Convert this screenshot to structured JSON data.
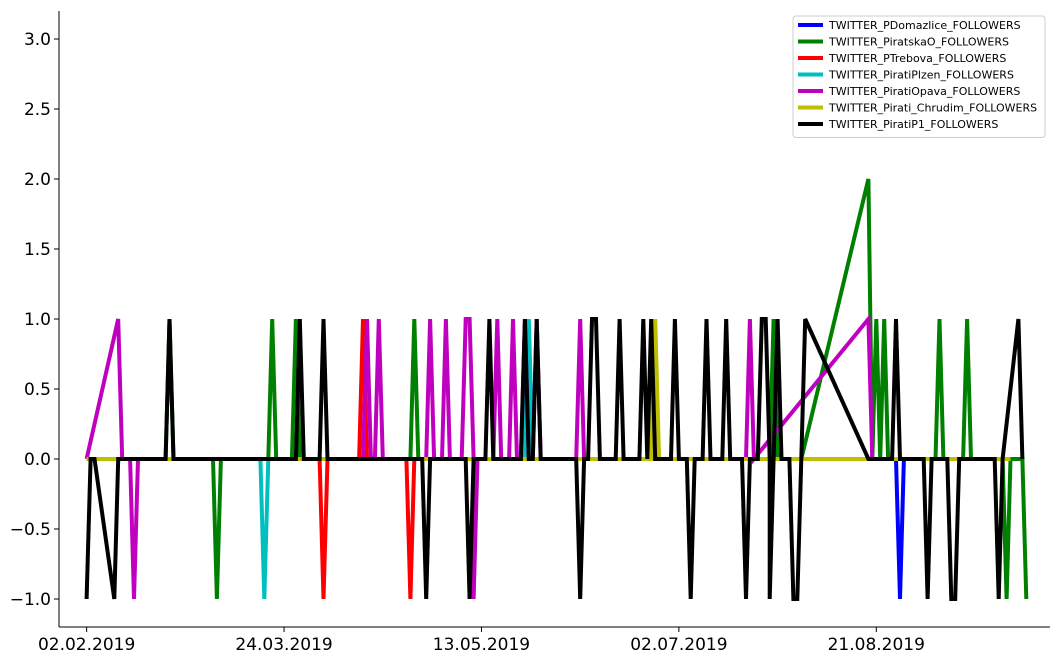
{
  "chart_data": {
    "type": "line",
    "title": "",
    "xlabel": "",
    "ylabel": "",
    "ylim": [
      -1.2,
      3.2
    ],
    "yticks": [
      "−1.0",
      "−0.5",
      "0.0",
      "0.5",
      "1.0",
      "1.5",
      "2.0",
      "2.5",
      "3.0"
    ],
    "yvals": [
      -1.0,
      -0.5,
      0.0,
      0.5,
      1.0,
      1.5,
      2.0,
      2.5,
      3.0
    ],
    "xlim": [
      "2019-01-26",
      "2019-10-04"
    ],
    "xticks": [
      "02.02.2019",
      "24.03.2019",
      "13.05.2019",
      "02.07.2019",
      "21.08.2019"
    ],
    "xtick_dates": [
      "2019-02-02",
      "2019-03-24",
      "2019-05-13",
      "2019-07-02",
      "2019-08-21"
    ],
    "grid": false,
    "legend_position": "top-right",
    "series": [
      {
        "name": "TWITTER_PDomazlice_FOLLOWERS",
        "color": "#0000ff",
        "points": [
          [
            "2019-02-02",
            0
          ],
          [
            "2019-02-03",
            0
          ],
          [
            "2019-02-10",
            0
          ],
          [
            "2019-02-11",
            0
          ],
          [
            "2019-02-20",
            0
          ],
          [
            "2019-02-21",
            0
          ],
          [
            "2019-03-02",
            0
          ],
          [
            "2019-03-04",
            0
          ],
          [
            "2019-03-18",
            0
          ],
          [
            "2019-03-20",
            0
          ],
          [
            "2019-04-09",
            0
          ],
          [
            "2019-04-11",
            0
          ],
          [
            "2019-04-28",
            0
          ],
          [
            "2019-05-01",
            0
          ],
          [
            "2019-05-18",
            0
          ],
          [
            "2019-05-20",
            0
          ],
          [
            "2019-06-01",
            0
          ],
          [
            "2019-06-03",
            0
          ],
          [
            "2019-06-17",
            0
          ],
          [
            "2019-06-19",
            0
          ],
          [
            "2019-07-06",
            0
          ],
          [
            "2019-07-09",
            0
          ],
          [
            "2019-07-28",
            0
          ],
          [
            "2019-07-30",
            0
          ],
          [
            "2019-08-19",
            0
          ],
          [
            "2019-08-26",
            0
          ],
          [
            "2019-08-27",
            -1
          ],
          [
            "2019-08-28",
            0
          ],
          [
            "2019-09-15",
            0
          ]
        ]
      },
      {
        "name": "TWITTER_PiratskaO_FOLLOWERS",
        "color": "#008000",
        "points": [
          [
            "2019-02-02",
            0
          ],
          [
            "2019-02-22",
            0
          ],
          [
            "2019-02-23",
            1
          ],
          [
            "2019-02-24",
            0
          ],
          [
            "2019-03-06",
            0
          ],
          [
            "2019-03-07",
            -1
          ],
          [
            "2019-03-08",
            0
          ],
          [
            "2019-03-20",
            0
          ],
          [
            "2019-03-21",
            1
          ],
          [
            "2019-03-22",
            0
          ],
          [
            "2019-03-26",
            0
          ],
          [
            "2019-03-27",
            1
          ],
          [
            "2019-03-28",
            0
          ],
          [
            "2019-04-25",
            0
          ],
          [
            "2019-04-26",
            1
          ],
          [
            "2019-04-27",
            0
          ],
          [
            "2019-05-31",
            0
          ],
          [
            "2019-07-25",
            0
          ],
          [
            "2019-07-26",
            1
          ],
          [
            "2019-07-27",
            0
          ],
          [
            "2019-08-02",
            0
          ],
          [
            "2019-08-19",
            2
          ],
          [
            "2019-08-20",
            0
          ],
          [
            "2019-08-21",
            1
          ],
          [
            "2019-08-22",
            0
          ],
          [
            "2019-08-23",
            1
          ],
          [
            "2019-08-24",
            0
          ],
          [
            "2019-09-05",
            0
          ],
          [
            "2019-09-06",
            1
          ],
          [
            "2019-09-07",
            0
          ],
          [
            "2019-09-12",
            0
          ],
          [
            "2019-09-13",
            1
          ],
          [
            "2019-09-14",
            0
          ],
          [
            "2019-09-22",
            0
          ],
          [
            "2019-09-23",
            -1
          ],
          [
            "2019-09-24",
            0
          ],
          [
            "2019-09-27",
            0
          ],
          [
            "2019-09-28",
            -1
          ]
        ]
      },
      {
        "name": "TWITTER_PTrebova_FOLLOWERS",
        "color": "#ff0000",
        "points": [
          [
            "2019-02-02",
            0
          ],
          [
            "2019-03-05",
            0
          ],
          [
            "2019-03-25",
            0
          ],
          [
            "2019-04-02",
            0
          ],
          [
            "2019-04-03",
            -1
          ],
          [
            "2019-04-04",
            0
          ],
          [
            "2019-04-11",
            0
          ],
          [
            "2019-04-12",
            0
          ],
          [
            "2019-04-13",
            1
          ],
          [
            "2019-04-14",
            0
          ],
          [
            "2019-04-17",
            0
          ],
          [
            "2019-04-24",
            0
          ],
          [
            "2019-04-25",
            -1
          ],
          [
            "2019-04-26",
            0
          ],
          [
            "2019-05-10",
            0
          ]
        ]
      },
      {
        "name": "TWITTER_PiratiPlzen_FOLLOWERS",
        "color": "#00bfbf",
        "points": [
          [
            "2019-02-02",
            0
          ],
          [
            "2019-03-18",
            0
          ],
          [
            "2019-03-19",
            -1
          ],
          [
            "2019-03-20",
            0
          ],
          [
            "2019-04-22",
            0
          ],
          [
            "2019-05-24",
            0
          ],
          [
            "2019-05-25",
            1
          ],
          [
            "2019-05-26",
            0
          ],
          [
            "2019-06-10",
            0
          ]
        ]
      },
      {
        "name": "TWITTER_PiratiOpava_FOLLOWERS",
        "color": "#bf00bf",
        "points": [
          [
            "2019-02-02",
            0
          ],
          [
            "2019-02-10",
            1
          ],
          [
            "2019-02-11",
            0
          ],
          [
            "2019-02-13",
            0
          ],
          [
            "2019-02-14",
            -1
          ],
          [
            "2019-02-15",
            0
          ],
          [
            "2019-04-13",
            0
          ],
          [
            "2019-04-14",
            1
          ],
          [
            "2019-04-15",
            0
          ],
          [
            "2019-04-16",
            0
          ],
          [
            "2019-04-17",
            1
          ],
          [
            "2019-04-18",
            0
          ],
          [
            "2019-04-29",
            0
          ],
          [
            "2019-04-30",
            1
          ],
          [
            "2019-05-01",
            0
          ],
          [
            "2019-05-03",
            0
          ],
          [
            "2019-05-04",
            1
          ],
          [
            "2019-05-05",
            0
          ],
          [
            "2019-05-08",
            0
          ],
          [
            "2019-05-09",
            1
          ],
          [
            "2019-05-10",
            1
          ],
          [
            "2019-05-11",
            0
          ],
          [
            "2019-05-11",
            -1
          ],
          [
            "2019-05-12",
            0
          ],
          [
            "2019-05-16",
            0
          ],
          [
            "2019-05-17",
            1
          ],
          [
            "2019-05-18",
            0
          ],
          [
            "2019-05-20",
            0
          ],
          [
            "2019-05-21",
            1
          ],
          [
            "2019-05-22",
            0
          ],
          [
            "2019-05-23",
            0
          ],
          [
            "2019-05-24",
            1
          ],
          [
            "2019-05-25",
            0
          ],
          [
            "2019-05-26",
            0
          ],
          [
            "2019-05-27",
            1
          ],
          [
            "2019-05-28",
            0
          ],
          [
            "2019-06-06",
            0
          ],
          [
            "2019-06-07",
            1
          ],
          [
            "2019-06-08",
            0
          ],
          [
            "2019-06-09",
            0
          ],
          [
            "2019-07-19",
            0
          ],
          [
            "2019-07-20",
            1
          ],
          [
            "2019-07-21",
            0
          ],
          [
            "2019-08-19",
            1
          ],
          [
            "2019-08-20",
            0
          ]
        ]
      },
      {
        "name": "TWITTER_Pirati_Chrudim_FOLLOWERS",
        "color": "#bfbf00",
        "points": [
          [
            "2019-02-02",
            0
          ],
          [
            "2019-02-05",
            0
          ],
          [
            "2019-03-05",
            0
          ],
          [
            "2019-03-08",
            0
          ],
          [
            "2019-06-25",
            0
          ],
          [
            "2019-06-26",
            1
          ],
          [
            "2019-06-27",
            0
          ],
          [
            "2019-07-31",
            0
          ],
          [
            "2019-09-20",
            0
          ],
          [
            "2019-09-24",
            0
          ]
        ]
      },
      {
        "name": "TWITTER_PiratiP1_FOLLOWERS",
        "color": "#000000",
        "points": [
          [
            "2019-02-02",
            -1
          ],
          [
            "2019-02-03",
            0
          ],
          [
            "2019-02-04",
            0
          ],
          [
            "2019-02-09",
            -1
          ],
          [
            "2019-02-10",
            0
          ],
          [
            "2019-02-22",
            0
          ],
          [
            "2019-02-23",
            1
          ],
          [
            "2019-02-24",
            0
          ],
          [
            "2019-03-22",
            0
          ],
          [
            "2019-03-27",
            0
          ],
          [
            "2019-03-28",
            1
          ],
          [
            "2019-03-29",
            0
          ],
          [
            "2019-04-02",
            0
          ],
          [
            "2019-04-03",
            1
          ],
          [
            "2019-04-04",
            0
          ],
          [
            "2019-04-22",
            0
          ],
          [
            "2019-04-28",
            0
          ],
          [
            "2019-04-29",
            -1
          ],
          [
            "2019-04-30",
            0
          ],
          [
            "2019-05-09",
            0
          ],
          [
            "2019-05-10",
            -1
          ],
          [
            "2019-05-11",
            0
          ],
          [
            "2019-05-14",
            0
          ],
          [
            "2019-05-15",
            1
          ],
          [
            "2019-05-16",
            0
          ],
          [
            "2019-05-23",
            0
          ],
          [
            "2019-05-24",
            1
          ],
          [
            "2019-05-25",
            0
          ],
          [
            "2019-05-26",
            0
          ],
          [
            "2019-05-27",
            1
          ],
          [
            "2019-05-28",
            0
          ],
          [
            "2019-06-06",
            0
          ],
          [
            "2019-06-07",
            -1
          ],
          [
            "2019-06-08",
            0
          ],
          [
            "2019-06-09",
            0
          ],
          [
            "2019-06-10",
            1
          ],
          [
            "2019-06-11",
            1
          ],
          [
            "2019-06-12",
            0
          ],
          [
            "2019-06-16",
            0
          ],
          [
            "2019-06-17",
            1
          ],
          [
            "2019-06-18",
            0
          ],
          [
            "2019-06-22",
            0
          ],
          [
            "2019-06-23",
            1
          ],
          [
            "2019-06-24",
            0
          ],
          [
            "2019-06-25",
            1
          ],
          [
            "2019-06-26",
            0
          ],
          [
            "2019-06-30",
            0
          ],
          [
            "2019-07-01",
            1
          ],
          [
            "2019-07-02",
            0
          ],
          [
            "2019-07-04",
            0
          ],
          [
            "2019-07-05",
            -1
          ],
          [
            "2019-07-06",
            0
          ],
          [
            "2019-07-08",
            0
          ],
          [
            "2019-07-09",
            1
          ],
          [
            "2019-07-10",
            0
          ],
          [
            "2019-07-13",
            0
          ],
          [
            "2019-07-14",
            1
          ],
          [
            "2019-07-15",
            0
          ],
          [
            "2019-07-18",
            0
          ],
          [
            "2019-07-19",
            -1
          ],
          [
            "2019-07-20",
            0
          ],
          [
            "2019-07-22",
            0
          ],
          [
            "2019-07-23",
            1
          ],
          [
            "2019-07-24",
            1
          ],
          [
            "2019-07-25",
            0
          ],
          [
            "2019-07-25",
            -1
          ],
          [
            "2019-07-26",
            0
          ],
          [
            "2019-07-27",
            1
          ],
          [
            "2019-07-28",
            0
          ],
          [
            "2019-07-30",
            0
          ],
          [
            "2019-07-31",
            -1
          ],
          [
            "2019-08-01",
            -1
          ],
          [
            "2019-08-02",
            0
          ],
          [
            "2019-08-03",
            1
          ],
          [
            "2019-08-19",
            0
          ],
          [
            "2019-08-25",
            0
          ],
          [
            "2019-08-26",
            1
          ],
          [
            "2019-08-27",
            0
          ],
          [
            "2019-09-02",
            0
          ],
          [
            "2019-09-03",
            -1
          ],
          [
            "2019-09-04",
            0
          ],
          [
            "2019-09-08",
            0
          ],
          [
            "2019-09-09",
            -1
          ],
          [
            "2019-09-10",
            -1
          ],
          [
            "2019-09-11",
            0
          ],
          [
            "2019-09-20",
            0
          ],
          [
            "2019-09-21",
            -1
          ],
          [
            "2019-09-22",
            0
          ],
          [
            "2019-09-26",
            1
          ],
          [
            "2019-09-27",
            0
          ]
        ]
      }
    ]
  }
}
